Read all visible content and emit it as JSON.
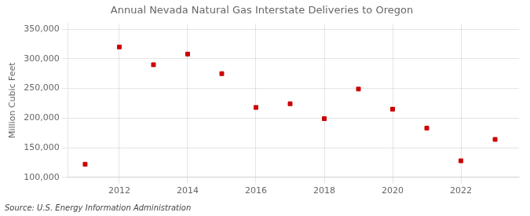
{
  "chart_data": {
    "type": "scatter",
    "title": "Annual Nevada Natural Gas Interstate Deliveries to Oregon",
    "ylabel": "Million Cubic Feet",
    "annotations": [
      "Source: U.S. Energy Information Administration"
    ],
    "x": [
      2011,
      2012,
      2013,
      2014,
      2015,
      2016,
      2017,
      2018,
      2019,
      2020,
      2021,
      2022,
      2023
    ],
    "values": [
      122000,
      320000,
      290000,
      308000,
      275000,
      218000,
      224000,
      199000,
      249000,
      215000,
      183000,
      128000,
      164000
    ],
    "color": "#cc0000",
    "marker": "square",
    "xlim": [
      2010.5,
      2023.7
    ],
    "xticks": [
      2012,
      2014,
      2016,
      2018,
      2020,
      2022
    ],
    "ylim": [
      100000,
      360000
    ],
    "yticks": [
      {
        "value": 100000,
        "label": "100,000"
      },
      {
        "value": 150000,
        "label": "150,000"
      },
      {
        "value": 200000,
        "label": "200,000"
      },
      {
        "value": 250000,
        "label": "250,000"
      },
      {
        "value": 300000,
        "label": "300,000"
      },
      {
        "value": 350000,
        "label": "350,000"
      }
    ],
    "grid": true
  }
}
